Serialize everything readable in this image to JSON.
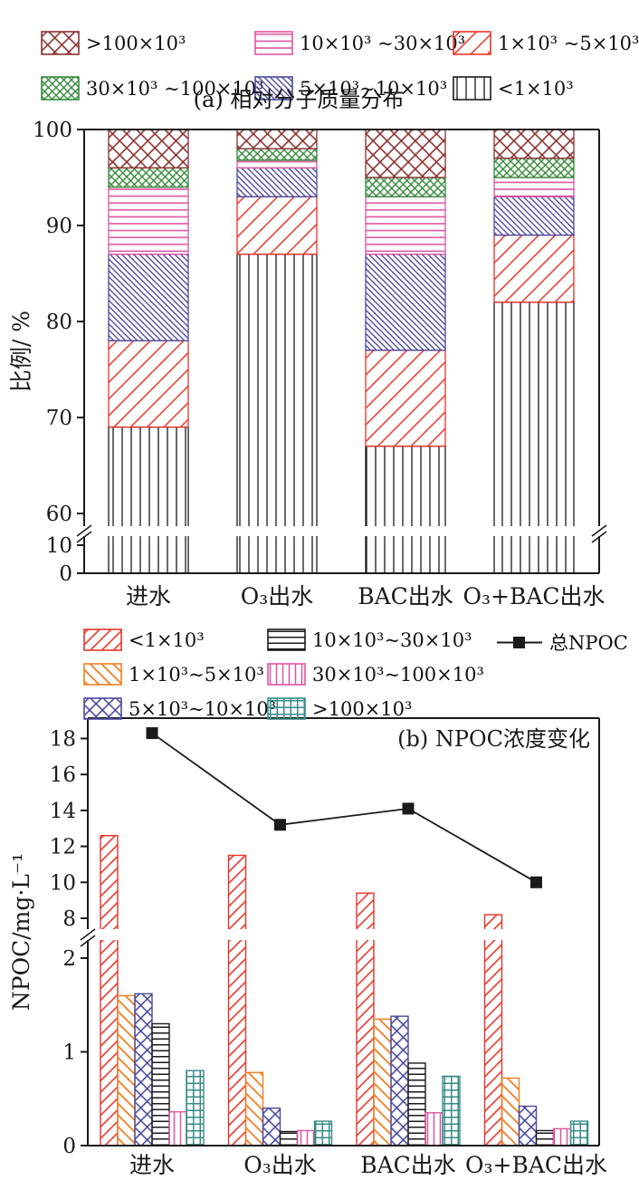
{
  "panel_a": {
    "title": "(a) 相对分子质量分布",
    "ylabel": "比例/ %",
    "legend": [
      {
        "label": ">100×10³",
        "pattern": "pa-cross"
      },
      {
        "label": "10×10³ ~30×10³",
        "pattern": "pa-horiz"
      },
      {
        "label": "1×10³ ~5×10³",
        "pattern": "pa-diagf"
      },
      {
        "label": "30×10³ ~100×10³",
        "pattern": "pa-crossd"
      },
      {
        "label": "5×10³~10×10³",
        "pattern": "pa-diagb"
      },
      {
        "label": "<1×10³",
        "pattern": "pa-vert"
      }
    ]
  },
  "panel_b": {
    "title": "(b) NPOC浓度变化",
    "ylabel": "NPOC/mg·L⁻¹",
    "legend": [
      {
        "label": "<1×10³",
        "pattern": "pb-diagf"
      },
      {
        "label": "10×10³~30×10³",
        "pattern": "pb-horiz"
      },
      {
        "label": "总NPOC",
        "pattern": "npoc-line"
      },
      {
        "label": "1×10³~5×10³",
        "pattern": "pb-diagb"
      },
      {
        "label": "30×10³~100×10³",
        "pattern": "pb-vert"
      },
      {
        "label": "5×10³~10×10³",
        "pattern": "pb-crossx"
      },
      {
        "label": ">100×10³",
        "pattern": "pb-grid"
      }
    ]
  },
  "colors": {
    "axis": "#1a1a1a",
    "red": "#e93428",
    "dark_red": "#8b3030",
    "green": "#338a3a",
    "magenta": "#dd55a0",
    "blue": "#4a4a9c",
    "orange": "#ee7f22",
    "teal": "#378b88",
    "npoc_line": "#1a1a1a"
  },
  "patterns": [
    {
      "id": "pa-vert",
      "type": "vert",
      "color": "#1a1a1a",
      "size": 10,
      "sw": 1.3
    },
    {
      "id": "pa-diagf",
      "type": "diag-f",
      "color": "#e93428",
      "size": 13,
      "sw": 1.5
    },
    {
      "id": "pa-diagb",
      "type": "diag-b",
      "color": "#4a4a9c",
      "size": 4.6,
      "sw": 1.4
    },
    {
      "id": "pa-horiz",
      "type": "horiz",
      "color": "#dd55a0",
      "size": 7.6,
      "sw": 1.6
    },
    {
      "id": "pa-crossd",
      "type": "cross",
      "color": "#338a3a",
      "size": 6,
      "sw": 1.4
    },
    {
      "id": "pa-cross",
      "type": "cross",
      "color": "#8b3030",
      "size": 11,
      "sw": 1.6
    },
    {
      "id": "pb-diagf",
      "type": "diag-f",
      "color": "#e93428",
      "size": 9,
      "sw": 1.6
    },
    {
      "id": "pb-diagb",
      "type": "diag-b",
      "color": "#ee7f22",
      "size": 9,
      "sw": 1.8
    },
    {
      "id": "pb-crossx",
      "type": "cross",
      "color": "#4a4a9c",
      "size": 10,
      "sw": 1.6
    },
    {
      "id": "pb-horiz",
      "type": "horiz",
      "color": "#1a1a1a",
      "size": 6.5,
      "sw": 1.5
    },
    {
      "id": "pb-vert",
      "type": "vert",
      "color": "#dd55a0",
      "size": 7,
      "sw": 1.5
    },
    {
      "id": "pb-grid",
      "type": "grid",
      "color": "#378b88",
      "size": 7.5,
      "sw": 1.5
    }
  ],
  "chart_data": [
    {
      "type": "bar",
      "stacked": true,
      "title": "(a) 相对分子质量分布",
      "categories": [
        "进水",
        "O₃出水",
        "BAC出水",
        "O₃+BAC出水"
      ],
      "xlabel": "",
      "ylabel": "比例/ %",
      "ylim": [
        0,
        100
      ],
      "y_axis_break": [
        12,
        59
      ],
      "yticks_lower": [
        0,
        10
      ],
      "yticks_upper": [
        60,
        70,
        80,
        90,
        100
      ],
      "grid": false,
      "legend_position": "top",
      "series": [
        {
          "name": "<1×10³",
          "pattern": "pa-vert",
          "color": "#1a1a1a",
          "values": [
            69,
            87,
            67,
            82
          ]
        },
        {
          "name": "1×10³ ~5×10³",
          "pattern": "pa-diagf",
          "color": "#e93428",
          "values": [
            9,
            6,
            10,
            7
          ]
        },
        {
          "name": "5×10³~10×10³",
          "pattern": "pa-diagb",
          "color": "#4a4a9c",
          "values": [
            9,
            3,
            10,
            4
          ]
        },
        {
          "name": "10×10³ ~30×10³",
          "pattern": "pa-horiz",
          "color": "#dd55a0",
          "values": [
            7,
            0.8,
            6,
            2
          ]
        },
        {
          "name": "30×10³ ~100×10³",
          "pattern": "pa-crossd",
          "color": "#338a3a",
          "values": [
            2,
            1.2,
            2,
            2
          ]
        },
        {
          "name": ">100×10³",
          "pattern": "pa-cross",
          "color": "#8b3030",
          "values": [
            4,
            2,
            5,
            3
          ]
        }
      ]
    },
    {
      "type": "bar+line",
      "stacked": false,
      "title": "(b) NPOC浓度变化",
      "categories": [
        "进水",
        "O₃出水",
        "BAC出水",
        "O₃+BAC出水"
      ],
      "xlabel": "",
      "ylabel": "NPOC/mg·L⁻¹",
      "ylim": [
        0,
        18.8
      ],
      "y_axis_break": [
        2.2,
        7.7
      ],
      "yticks_lower": [
        0,
        1,
        2
      ],
      "yticks_upper": [
        8,
        10,
        12,
        14,
        16,
        18
      ],
      "grid": false,
      "legend_position": "top",
      "bar_series": [
        {
          "name": "<1×10³",
          "pattern": "pb-diagf",
          "color": "#e93428",
          "values": [
            12.6,
            11.5,
            9.4,
            8.2
          ]
        },
        {
          "name": "1×10³~5×10³",
          "pattern": "pb-diagb",
          "color": "#ee7f22",
          "values": [
            1.6,
            0.78,
            1.35,
            0.72
          ]
        },
        {
          "name": "5×10³~10×10³",
          "pattern": "pb-crossx",
          "color": "#4a4a9c",
          "values": [
            1.62,
            0.4,
            1.38,
            0.42
          ]
        },
        {
          "name": "10×10³~30×10³",
          "pattern": "pb-horiz",
          "color": "#1a1a1a",
          "values": [
            1.3,
            0.15,
            0.88,
            0.16
          ]
        },
        {
          "name": "30×10³~100×10³",
          "pattern": "pb-vert",
          "color": "#dd55a0",
          "values": [
            0.36,
            0.16,
            0.35,
            0.18
          ]
        },
        {
          "name": ">100×10³",
          "pattern": "pb-grid",
          "color": "#378b88",
          "values": [
            0.8,
            0.26,
            0.74,
            0.26
          ]
        }
      ],
      "line_series": {
        "name": "总NPOC",
        "color": "#1a1a1a",
        "marker": "square",
        "values": [
          18.3,
          13.2,
          14.1,
          10.0
        ]
      }
    }
  ]
}
